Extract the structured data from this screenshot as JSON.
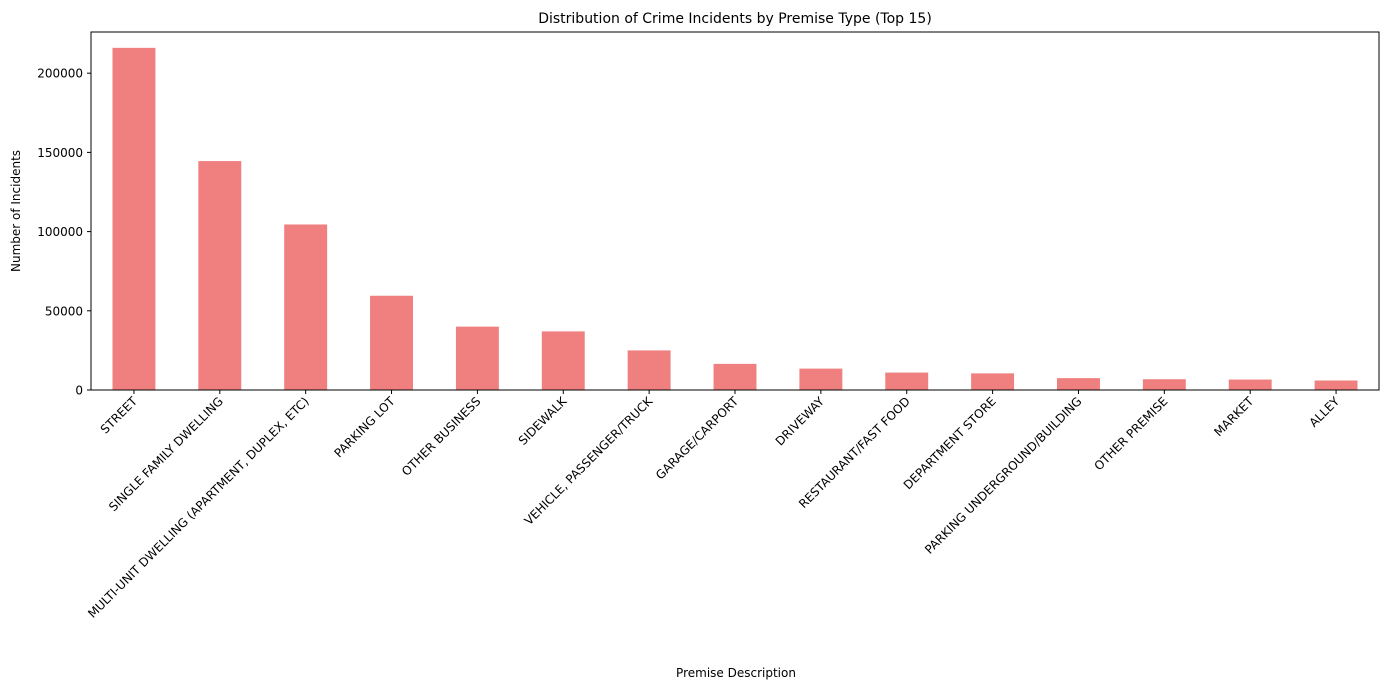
{
  "chart_data": {
    "type": "bar",
    "title": "Distribution of Crime Incidents by Premise Type (Top 15)",
    "xlabel": "Premise Description",
    "ylabel": "Number of Incidents",
    "ylim": [
      0,
      226000
    ],
    "yticks": [
      0,
      50000,
      100000,
      150000,
      200000
    ],
    "grid": false,
    "legend": "none",
    "bar_color": "#f08080",
    "categories": [
      "STREET",
      "SINGLE FAMILY DWELLING",
      "MULTI-UNIT DWELLING (APARTMENT, DUPLEX, ETC)",
      "PARKING LOT",
      "OTHER BUSINESS",
      "SIDEWALK",
      "VEHICLE, PASSENGER/TRUCK",
      "GARAGE/CARPORT",
      "DRIVEWAY",
      "RESTAURANT/FAST FOOD",
      "DEPARTMENT STORE",
      "PARKING UNDERGROUND/BUILDING",
      "OTHER PREMISE",
      "MARKET",
      "ALLEY"
    ],
    "values": [
      216000,
      144500,
      104500,
      59500,
      40000,
      37000,
      25000,
      16500,
      13500,
      11000,
      10500,
      7500,
      6800,
      6600,
      6000
    ]
  }
}
